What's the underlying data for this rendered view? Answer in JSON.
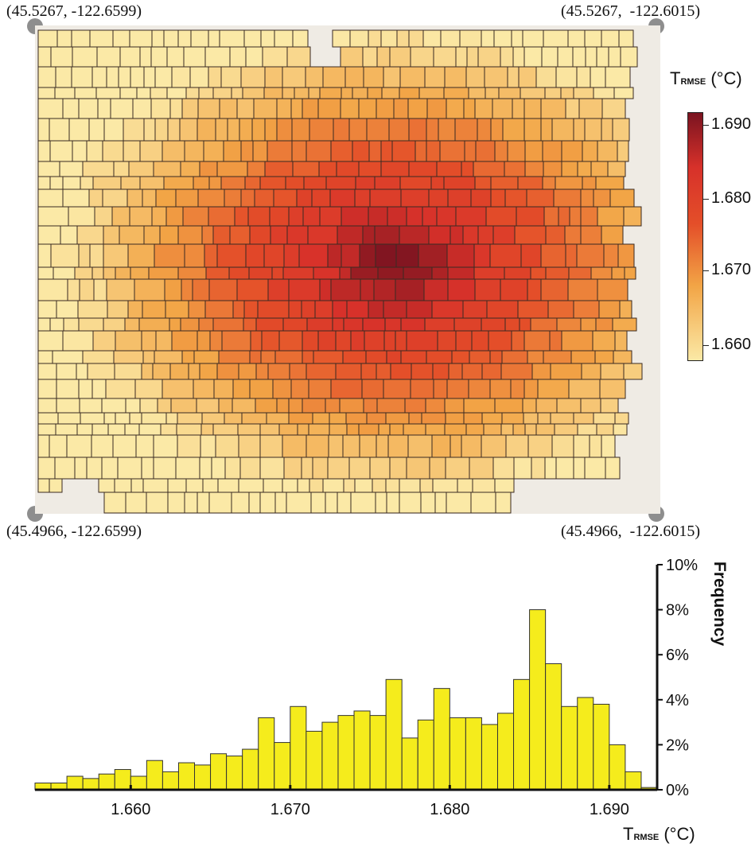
{
  "corners": {
    "top_left": "(45.5267, -122.6599)",
    "top_right": "(45.5267,  -122.6015)",
    "bottom_left": "(45.4966, -122.6599)",
    "bottom_right": "(45.4966,  -122.6015)"
  },
  "colors": {
    "low": "#fbe9a6",
    "mid_low": "#f2a546",
    "mid": "#e44f29",
    "high": "#d7312a",
    "max": "#7a1320",
    "bar_fill": "#f5ec1c",
    "basemap": "#efebe4"
  },
  "colorbar": {
    "title_main": "T",
    "title_sub": "RMSE",
    "title_unit": " (°C)",
    "range": [
      1.657,
      1.693
    ],
    "ticks": [
      "1.660",
      "1.670",
      "1.680",
      "1.690"
    ]
  },
  "chart_data": {
    "type": "bar",
    "xlabel_main": "T",
    "xlabel_sub": "RMSE",
    "xlabel_unit": " (°C)",
    "ylabel": "Frequency",
    "xlim": [
      1.654,
      1.693
    ],
    "ylim": [
      0,
      10
    ],
    "x_ticks": [
      "1.660",
      "1.670",
      "1.680",
      "1.690"
    ],
    "y_ticks": [
      "0%",
      "2%",
      "4%",
      "6%",
      "8%",
      "10%"
    ],
    "bin_start": 1.654,
    "bin_width": 1.0,
    "bin_width_note": "",
    "values": [
      0.3,
      0.3,
      0.6,
      0.5,
      0.7,
      0.9,
      0.6,
      1.3,
      0.8,
      1.2,
      1.1,
      1.6,
      1.5,
      1.8,
      3.2,
      2.1,
      3.7,
      2.6,
      3.0,
      3.3,
      3.5,
      3.3,
      4.9,
      2.3,
      3.1,
      4.5,
      3.2,
      3.2,
      2.9,
      3.4,
      4.9,
      8.0,
      5.6,
      3.7,
      4.1,
      3.8,
      2.0,
      0.8,
      0.1
    ]
  }
}
